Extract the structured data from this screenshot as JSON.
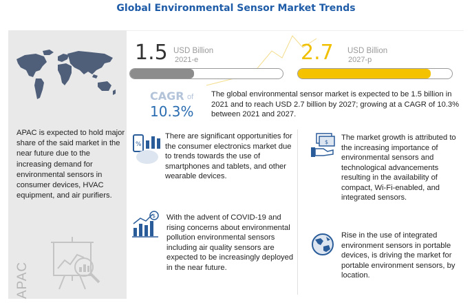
{
  "title": "Global Environmental Sensor Market Trends",
  "left": {
    "apac_text": "APAC is expected to hold major share of the said market in the near future due to the increasing demand for environmental sensors in consumer devices, HVAC equipment, and air purifiers.",
    "vertical_label": "APAC",
    "icons": [
      "world-map-icon",
      "magnifier-chart-icon"
    ]
  },
  "market_2021": {
    "value": "1.5",
    "unit": "USD Billion",
    "year": "2021-e",
    "fill_fraction": 0.42,
    "color": "#8c8c8c"
  },
  "market_2027": {
    "value": "2.7",
    "unit": "USD Billion",
    "year": "2027-p",
    "fill_fraction": 0.86,
    "color": "#f5c200"
  },
  "cagr": {
    "label": "CAGR",
    "of": "of",
    "value": "10.3%"
  },
  "summary": "The global environmental sensor market  is expected to be 1.5 billion in 2021 and to reach USD 2.7 billion by 2027; growing at a CAGR of 10.3% between 2021 and 2027.",
  "points": {
    "consumer": "There are significant opportunities for the consumer electronics market due to trends towards the use of smartphones and tablets, and other wearable devices.",
    "covid": "With the advent of COVID-19 and rising concerns about environmental pollution environmental sensors including air quality sensors are expected to be increasingly deployed in the near future.",
    "growth": "The market growth is attributed to the increasing importance of environmental sensors and technological advancements resulting in the availability of compact, Wi-Fi-enabled, and integrated sensors.",
    "portable": "Rise in the use of integrated environment sensors in portable devices, is driving the market for portable environment sensors, by location."
  },
  "colors": {
    "title": "#1f5ca8",
    "accent_blue": "#2a6cb0",
    "gray_bar": "#8c8c8c",
    "yellow_bar": "#f5c200",
    "panel": "#e9e9e9"
  }
}
